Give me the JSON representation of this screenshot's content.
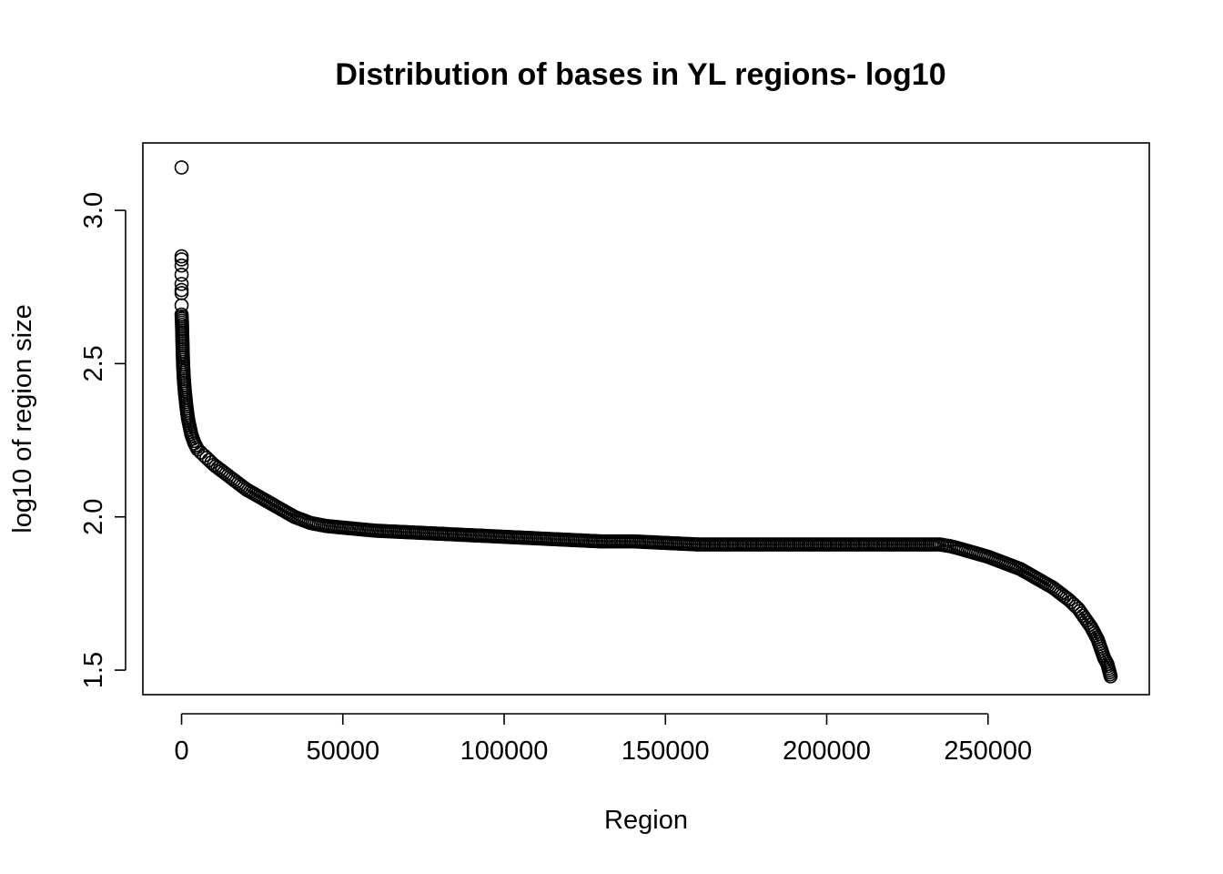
{
  "chart_data": {
    "type": "scatter",
    "title": "Distribution of bases in YL regions- log10",
    "xlabel": "Region",
    "ylabel": "log10 of region size",
    "xlim": [
      -12000,
      300000
    ],
    "ylim": [
      1.42,
      3.22
    ],
    "x_ticks": [
      0,
      50000,
      100000,
      150000,
      200000,
      250000
    ],
    "x_tick_labels": [
      "0",
      "50000",
      "100000",
      "150000",
      "200000",
      "250000"
    ],
    "y_ticks": [
      1.5,
      2.0,
      2.5,
      3.0
    ],
    "y_tick_labels": [
      "1.5",
      "2.0",
      "2.5",
      "3.0"
    ],
    "grid": false,
    "marker": "open-circle",
    "color": "#000000",
    "points": {
      "x": [
        0,
        0,
        0,
        0,
        0,
        0,
        0,
        0,
        0,
        0,
        100,
        150,
        200,
        300,
        400,
        500,
        700,
        1000,
        1500,
        2000,
        3000,
        4000,
        5000,
        6000,
        7000,
        10000,
        15000,
        20000,
        25000,
        30000,
        35000,
        40000,
        45000,
        50000,
        55000,
        60000,
        70000,
        80000,
        90000,
        100000,
        110000,
        120000,
        130000,
        140000,
        150000,
        160000,
        170000,
        180000,
        190000,
        200000,
        210000,
        220000,
        230000,
        235000,
        238000,
        240000,
        245000,
        250000,
        255000,
        260000,
        265000,
        270000,
        275000,
        278000,
        280000,
        282000,
        284000,
        285000,
        286000,
        287000,
        287500,
        288000
      ],
      "y": [
        3.14,
        2.85,
        2.84,
        2.82,
        2.79,
        2.76,
        2.74,
        2.73,
        2.69,
        2.66,
        2.64,
        2.62,
        2.6,
        2.56,
        2.52,
        2.49,
        2.45,
        2.41,
        2.36,
        2.32,
        2.27,
        2.24,
        2.22,
        2.21,
        2.2,
        2.17,
        2.13,
        2.09,
        2.06,
        2.03,
        2.0,
        1.98,
        1.97,
        1.965,
        1.96,
        1.955,
        1.95,
        1.945,
        1.94,
        1.935,
        1.93,
        1.925,
        1.92,
        1.92,
        1.915,
        1.91,
        1.91,
        1.91,
        1.91,
        1.91,
        1.91,
        1.91,
        1.91,
        1.91,
        1.905,
        1.9,
        1.885,
        1.87,
        1.85,
        1.83,
        1.8,
        1.77,
        1.73,
        1.7,
        1.67,
        1.64,
        1.6,
        1.57,
        1.54,
        1.52,
        1.5,
        1.48
      ]
    }
  }
}
